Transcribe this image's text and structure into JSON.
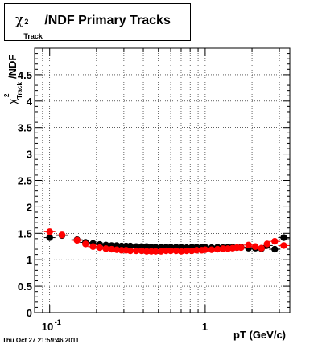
{
  "chart_data": {
    "type": "scatter",
    "title": {
      "symbol": "χ",
      "superscript": "2",
      "subscript": "Track",
      "rest": "/NDF  Primary Tracks"
    },
    "ylabel": {
      "symbol": "χ",
      "superscript": "2",
      "subscript": "Track",
      "rest": "/NDF"
    },
    "xlabel": "pT (GeV/c)",
    "x_scale": "log",
    "xlim": [
      0.08,
      3.5
    ],
    "ylim": [
      0,
      5
    ],
    "x_ticks": [
      {
        "value": 0.1,
        "base": "10",
        "exp": "-1"
      },
      {
        "value": 1,
        "base": "1",
        "exp": ""
      }
    ],
    "y_ticks": [
      "0",
      "0.5",
      "1",
      "1.5",
      "2",
      "2.5",
      "3",
      "3.5",
      "4",
      "4.5"
    ],
    "grid": true,
    "series": [
      {
        "color": "#000000",
        "x": [
          0.1,
          0.12,
          0.15,
          0.17,
          0.19,
          0.21,
          0.23,
          0.25,
          0.27,
          0.29,
          0.31,
          0.33,
          0.36,
          0.39,
          0.42,
          0.45,
          0.48,
          0.52,
          0.56,
          0.6,
          0.65,
          0.7,
          0.76,
          0.82,
          0.88,
          0.95,
          1.0,
          1.1,
          1.2,
          1.3,
          1.4,
          1.5,
          1.6,
          1.7,
          1.9,
          2.1,
          2.3,
          2.5,
          2.8,
          3.2
        ],
        "y": [
          1.42,
          1.46,
          1.38,
          1.33,
          1.31,
          1.29,
          1.28,
          1.27,
          1.27,
          1.26,
          1.26,
          1.26,
          1.25,
          1.25,
          1.25,
          1.24,
          1.24,
          1.24,
          1.24,
          1.24,
          1.24,
          1.24,
          1.23,
          1.24,
          1.24,
          1.24,
          1.24,
          1.23,
          1.24,
          1.23,
          1.24,
          1.24,
          1.23,
          1.24,
          1.22,
          1.22,
          1.21,
          1.27,
          1.2,
          1.42
        ]
      },
      {
        "color": "#ff0000",
        "x": [
          0.1,
          0.12,
          0.15,
          0.17,
          0.19,
          0.21,
          0.23,
          0.25,
          0.27,
          0.29,
          0.31,
          0.33,
          0.36,
          0.39,
          0.42,
          0.45,
          0.48,
          0.52,
          0.56,
          0.6,
          0.65,
          0.7,
          0.76,
          0.82,
          0.88,
          0.95,
          1.0,
          1.1,
          1.2,
          1.3,
          1.4,
          1.5,
          1.6,
          1.7,
          1.9,
          2.1,
          2.3,
          2.5,
          2.8,
          3.2
        ],
        "y": [
          1.53,
          1.47,
          1.37,
          1.3,
          1.25,
          1.23,
          1.21,
          1.2,
          1.19,
          1.18,
          1.18,
          1.17,
          1.17,
          1.17,
          1.16,
          1.16,
          1.16,
          1.16,
          1.17,
          1.17,
          1.17,
          1.16,
          1.17,
          1.17,
          1.18,
          1.18,
          1.19,
          1.19,
          1.2,
          1.21,
          1.21,
          1.22,
          1.23,
          1.23,
          1.28,
          1.25,
          1.22,
          1.3,
          1.35,
          1.27
        ]
      }
    ]
  },
  "footer": "Thu Oct 27 21:59:46 2011"
}
